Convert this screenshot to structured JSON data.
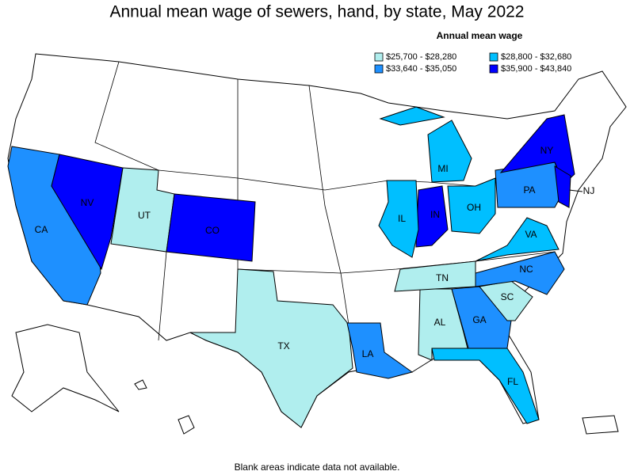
{
  "title": "Annual mean wage of sewers, hand, by state, May 2022",
  "legend": {
    "title": "Annual mean wage",
    "entries": [
      {
        "label": "$25,700 - $28,280",
        "color": "#b0eeee"
      },
      {
        "label": "$28,800 - $32,680",
        "color": "#00bfff"
      },
      {
        "label": "$33,640 - $35,050",
        "color": "#1e90ff"
      },
      {
        "label": "$35,900 - $43,840",
        "color": "#0000ff"
      }
    ]
  },
  "states": [
    {
      "label": "CA",
      "color": "#1e90ff"
    },
    {
      "label": "NV",
      "color": "#0000ff"
    },
    {
      "label": "UT",
      "color": "#b0eeee"
    },
    {
      "label": "CO",
      "color": "#0000ff"
    },
    {
      "label": "TX",
      "color": "#b0eeee"
    },
    {
      "label": "LA",
      "color": "#1e90ff"
    },
    {
      "label": "AL",
      "color": "#b0eeee"
    },
    {
      "label": "GA",
      "color": "#1e90ff"
    },
    {
      "label": "FL",
      "color": "#00bfff"
    },
    {
      "label": "SC",
      "color": "#b0eeee"
    },
    {
      "label": "NC",
      "color": "#1e90ff"
    },
    {
      "label": "TN",
      "color": "#b0eeee"
    },
    {
      "label": "VA",
      "color": "#00bfff"
    },
    {
      "label": "IN",
      "color": "#0000ff"
    },
    {
      "label": "IL",
      "color": "#00bfff"
    },
    {
      "label": "OH",
      "color": "#00bfff"
    },
    {
      "label": "MI",
      "color": "#00bfff"
    },
    {
      "label": "PA",
      "color": "#1e90ff"
    },
    {
      "label": "NY",
      "color": "#0000ff"
    },
    {
      "label": "NJ",
      "color": "#0000ff"
    }
  ],
  "footnote": "Blank areas indicate data not available."
}
